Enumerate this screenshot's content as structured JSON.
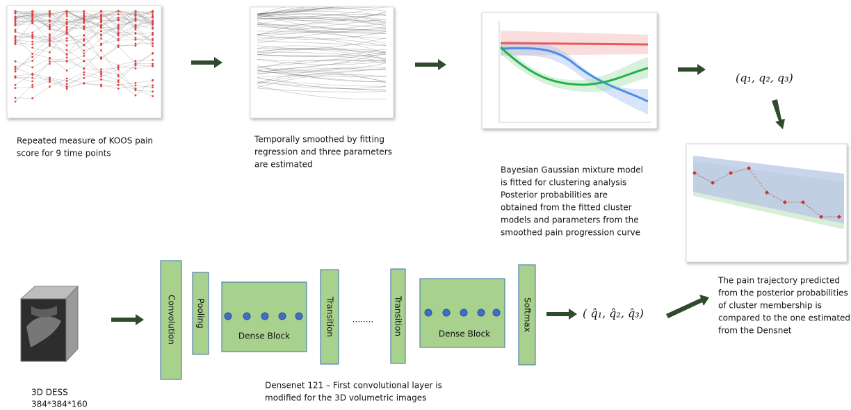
{
  "top_row": {
    "raw_caption": [
      "Repeated measure of KOOS pain",
      "score for 9 time points"
    ],
    "smoothed_caption": [
      "Temporally smoothed by fitting",
      "regression and three parameters",
      "are estimated"
    ],
    "mixture_caption": [
      "Bayesian Gaussian mixture model",
      "is fitted for clustering analysis",
      "Posterior probabilities are",
      "obtained from the fitted cluster",
      "models and parameters from the",
      "smoothed pain progression curve"
    ],
    "parameters": "(q₁, q₂, q₃)",
    "comparison_caption": [
      "The pain trajectory predicted",
      "from the posterior probabilities",
      "of cluster membership is",
      "compared to the one estimated",
      "from the Densnet"
    ]
  },
  "bottom_row": {
    "input_label": [
      "3D DESS",
      "384*384*160"
    ],
    "layers": [
      "Convolution",
      "Pooling",
      "Dense Block",
      "Transition",
      "........",
      "Transition",
      "Dense Block",
      "Softmax"
    ],
    "output": "( q̂₁, q̂₂, q̂₃)",
    "network_caption": [
      "Densenet 121 – First convolutional layer is",
      "modified for the 3D volumetric images"
    ]
  }
}
